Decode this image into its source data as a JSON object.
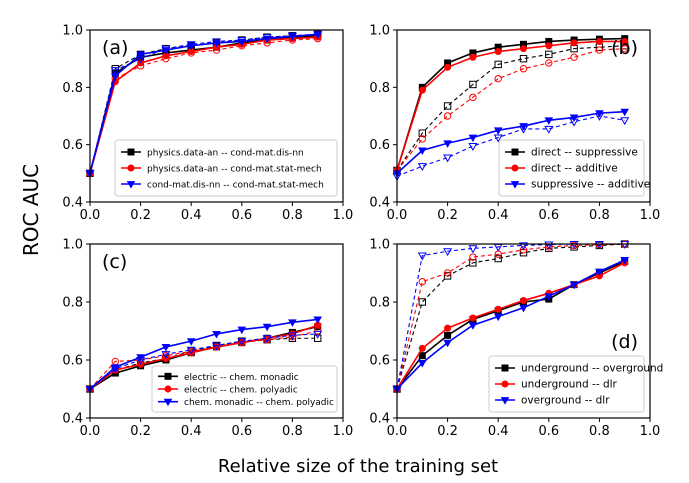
{
  "figure": {
    "ylabel": "ROC AUC",
    "xlabel": "Relative size of the training set"
  },
  "chart_data": [
    {
      "type": "line",
      "panel": "(a)",
      "xlim": [
        0.0,
        1.0
      ],
      "ylim": [
        0.4,
        1.0
      ],
      "xticks": [
        "0.0",
        "0.2",
        "0.4",
        "0.6",
        "0.8",
        "1.0"
      ],
      "yticks": [
        "0.4",
        "0.6",
        "0.8",
        "1.0"
      ],
      "legend_position": "lower-right",
      "series": [
        {
          "name": "physics.data-an -- cond-mat.dis-nn",
          "color": "#000000",
          "marker": "square",
          "x": [
            0.0,
            0.1,
            0.2,
            0.3,
            0.4,
            0.5,
            0.6,
            0.7,
            0.8,
            0.9
          ],
          "y_solid": [
            0.5,
            0.85,
            0.905,
            0.92,
            0.93,
            0.94,
            0.955,
            0.965,
            0.975,
            0.98
          ],
          "y_dashed": [
            0.5,
            0.865,
            0.915,
            0.935,
            0.945,
            0.955,
            0.965,
            0.975,
            0.98,
            0.985
          ]
        },
        {
          "name": "physics.data-an -- cond-mat.stat-mech",
          "color": "#ff0000",
          "marker": "diamond",
          "x": [
            0.0,
            0.1,
            0.2,
            0.3,
            0.4,
            0.5,
            0.6,
            0.7,
            0.8,
            0.9
          ],
          "y_solid": [
            0.5,
            0.82,
            0.885,
            0.91,
            0.925,
            0.94,
            0.95,
            0.965,
            0.97,
            0.975
          ],
          "y_dashed": [
            0.5,
            0.83,
            0.875,
            0.9,
            0.92,
            0.93,
            0.945,
            0.955,
            0.965,
            0.97
          ]
        },
        {
          "name": "cond-mat.dis-nn -- cond-mat.stat-mech",
          "color": "#0000ff",
          "marker": "triangle-down",
          "x": [
            0.0,
            0.1,
            0.2,
            0.3,
            0.4,
            0.5,
            0.6,
            0.7,
            0.8,
            0.9
          ],
          "y_solid": [
            0.5,
            0.84,
            0.915,
            0.93,
            0.945,
            0.955,
            0.96,
            0.97,
            0.978,
            0.985
          ],
          "y_dashed": [
            0.5,
            0.86,
            0.9,
            0.935,
            0.95,
            0.96,
            0.965,
            0.975,
            0.98,
            0.985
          ]
        }
      ]
    },
    {
      "type": "line",
      "panel": "(b)",
      "xlim": [
        0.0,
        1.0
      ],
      "ylim": [
        0.4,
        1.0
      ],
      "xticks": [
        "0.0",
        "0.2",
        "0.4",
        "0.6",
        "0.8",
        "1.0"
      ],
      "yticks": [
        "0.4",
        "0.6",
        "0.8",
        "1.0"
      ],
      "legend_position": "lower-right",
      "series": [
        {
          "name": "direct -- suppressive",
          "color": "#000000",
          "marker": "square",
          "x": [
            0.0,
            0.1,
            0.2,
            0.3,
            0.4,
            0.5,
            0.6,
            0.7,
            0.8,
            0.9
          ],
          "y_solid": [
            0.51,
            0.8,
            0.885,
            0.92,
            0.94,
            0.95,
            0.96,
            0.965,
            0.968,
            0.97
          ],
          "y_dashed": [
            0.51,
            0.64,
            0.735,
            0.81,
            0.88,
            0.9,
            0.915,
            0.935,
            0.94,
            0.945
          ]
        },
        {
          "name": "direct -- additive",
          "color": "#ff0000",
          "marker": "diamond",
          "x": [
            0.0,
            0.1,
            0.2,
            0.3,
            0.4,
            0.5,
            0.6,
            0.7,
            0.8,
            0.9
          ],
          "y_solid": [
            0.51,
            0.79,
            0.87,
            0.905,
            0.925,
            0.935,
            0.945,
            0.955,
            0.96,
            0.96
          ],
          "y_dashed": [
            0.51,
            0.62,
            0.7,
            0.765,
            0.83,
            0.865,
            0.885,
            0.905,
            0.93,
            0.935
          ]
        },
        {
          "name": "suppressive -- additive",
          "color": "#0000ff",
          "marker": "triangle-down",
          "x": [
            0.0,
            0.1,
            0.2,
            0.3,
            0.4,
            0.5,
            0.6,
            0.7,
            0.8,
            0.9
          ],
          "y_solid": [
            0.5,
            0.58,
            0.605,
            0.625,
            0.65,
            0.665,
            0.685,
            0.695,
            0.71,
            0.715
          ],
          "y_dashed": [
            0.49,
            0.525,
            0.555,
            0.595,
            0.625,
            0.655,
            0.655,
            0.68,
            0.7,
            0.685
          ]
        }
      ]
    },
    {
      "type": "line",
      "panel": "(c)",
      "xlim": [
        0.0,
        1.0
      ],
      "ylim": [
        0.4,
        1.0
      ],
      "xticks": [
        "0.0",
        "0.2",
        "0.4",
        "0.6",
        "0.8",
        "1.0"
      ],
      "yticks": [
        "0.4",
        "0.6",
        "0.8",
        "1.0"
      ],
      "legend_position": "lower-right",
      "series": [
        {
          "name": "electric -- chem. monadic",
          "color": "#000000",
          "marker": "square",
          "x": [
            0.0,
            0.1,
            0.2,
            0.3,
            0.4,
            0.5,
            0.6,
            0.7,
            0.8,
            0.9
          ],
          "y_solid": [
            0.5,
            0.555,
            0.58,
            0.6,
            0.625,
            0.645,
            0.66,
            0.675,
            0.695,
            0.715
          ],
          "y_dashed": [
            0.5,
            0.565,
            0.59,
            0.605,
            0.63,
            0.65,
            0.665,
            0.67,
            0.675,
            0.675
          ]
        },
        {
          "name": "electric -- chem. polyadic",
          "color": "#ff0000",
          "marker": "diamond",
          "x": [
            0.0,
            0.1,
            0.2,
            0.3,
            0.4,
            0.5,
            0.6,
            0.7,
            0.8,
            0.9
          ],
          "y_solid": [
            0.5,
            0.565,
            0.585,
            0.605,
            0.625,
            0.645,
            0.66,
            0.675,
            0.69,
            0.72
          ],
          "y_dashed": [
            0.5,
            0.595,
            0.6,
            0.615,
            0.63,
            0.645,
            0.66,
            0.67,
            0.68,
            0.7
          ]
        },
        {
          "name": "chem. monadic -- chem. polyadic",
          "color": "#0000ff",
          "marker": "triangle-down",
          "x": [
            0.0,
            0.1,
            0.2,
            0.3,
            0.4,
            0.5,
            0.6,
            0.7,
            0.8,
            0.9
          ],
          "y_solid": [
            0.5,
            0.575,
            0.61,
            0.645,
            0.665,
            0.69,
            0.705,
            0.715,
            0.73,
            0.74
          ],
          "y_dashed": [
            0.5,
            0.57,
            0.6,
            0.62,
            0.635,
            0.65,
            0.665,
            0.675,
            0.685,
            0.69
          ]
        }
      ]
    },
    {
      "type": "line",
      "panel": "(d)",
      "xlim": [
        0.0,
        1.0
      ],
      "ylim": [
        0.4,
        1.0
      ],
      "xticks": [
        "0.0",
        "0.2",
        "0.4",
        "0.6",
        "0.8",
        "1.0"
      ],
      "yticks": [
        "0.4",
        "0.6",
        "0.8",
        "1.0"
      ],
      "legend_position": "lower-right",
      "series": [
        {
          "name": "underground -- overground",
          "color": "#000000",
          "marker": "square",
          "x": [
            0.0,
            0.1,
            0.2,
            0.3,
            0.4,
            0.5,
            0.6,
            0.7,
            0.8,
            0.9
          ],
          "y_solid": [
            0.5,
            0.615,
            0.685,
            0.74,
            0.77,
            0.8,
            0.81,
            0.86,
            0.9,
            0.94
          ],
          "y_dashed": [
            0.5,
            0.8,
            0.89,
            0.935,
            0.95,
            0.97,
            0.985,
            0.99,
            0.995,
            1.0
          ]
        },
        {
          "name": "underground -- dlr",
          "color": "#ff0000",
          "marker": "diamond",
          "x": [
            0.0,
            0.1,
            0.2,
            0.3,
            0.4,
            0.5,
            0.6,
            0.7,
            0.8,
            0.9
          ],
          "y_solid": [
            0.5,
            0.64,
            0.71,
            0.745,
            0.775,
            0.805,
            0.83,
            0.86,
            0.89,
            0.935
          ],
          "y_dashed": [
            0.5,
            0.87,
            0.9,
            0.955,
            0.965,
            0.98,
            0.99,
            0.995,
            0.998,
            1.0
          ]
        },
        {
          "name": "overground -- dlr",
          "color": "#0000ff",
          "marker": "triangle-down",
          "x": [
            0.0,
            0.1,
            0.2,
            0.3,
            0.4,
            0.5,
            0.6,
            0.7,
            0.8,
            0.9
          ],
          "y_solid": [
            0.5,
            0.59,
            0.66,
            0.72,
            0.75,
            0.78,
            0.82,
            0.86,
            0.905,
            0.945
          ],
          "y_dashed": [
            0.5,
            0.96,
            0.975,
            0.985,
            0.99,
            0.995,
            0.998,
            1.0,
            1.0,
            1.0
          ]
        }
      ]
    }
  ]
}
